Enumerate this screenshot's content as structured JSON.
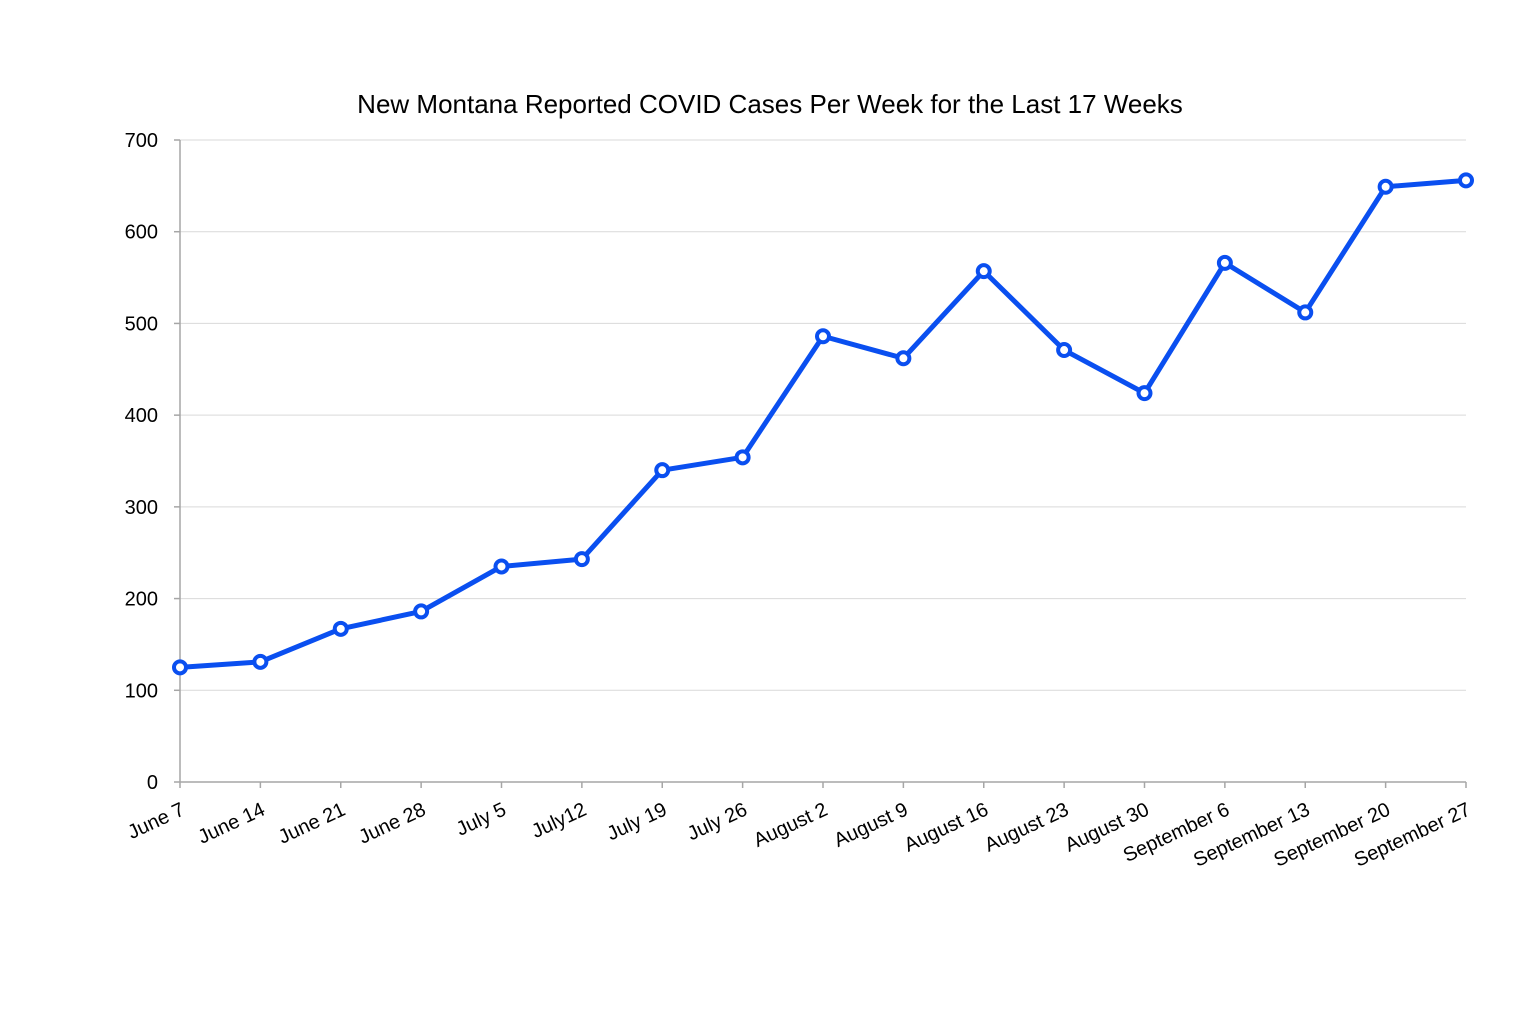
{
  "chart_data": {
    "type": "line",
    "title": "New Montana Reported COVID Cases Per Week for the Last 17 Weeks",
    "xlabel": "",
    "ylabel": "",
    "categories": [
      "June 7",
      "June 14",
      "June 21",
      "June 28",
      "July 5",
      "July12",
      "July 19",
      "July 26",
      "August 2",
      "August 9",
      "August 16",
      "August 23",
      "August 30",
      "September 6",
      "September 13",
      "September 20",
      "September 27"
    ],
    "series": [
      {
        "values": [
          125,
          131,
          167,
          186,
          235,
          243,
          340,
          354,
          486,
          462,
          557,
          471,
          424,
          566,
          512,
          649,
          656
        ],
        "color": "#0a4ff0"
      }
    ],
    "ylim": [
      0,
      700
    ],
    "yticks": [
      0,
      100,
      200,
      300,
      400,
      500,
      600,
      700
    ],
    "grid": true,
    "legend": "none"
  }
}
